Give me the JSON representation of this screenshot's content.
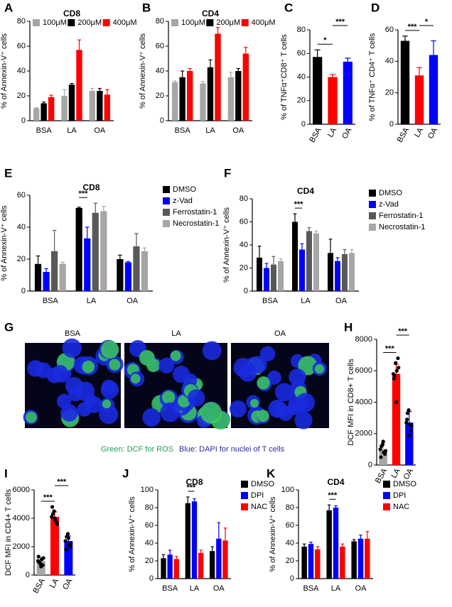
{
  "chart_data": [
    {
      "label": "A",
      "type": "bar",
      "title": "CD8",
      "ylabel": "% of Annexin-V⁺ cells",
      "categories": [
        "BSA",
        "LA",
        "OA"
      ],
      "ylim": [
        0,
        80
      ],
      "yticks": [
        0,
        20,
        40,
        60,
        80
      ],
      "legend": "top",
      "series": [
        {
          "name": "100μM",
          "color": "#a6a6a6",
          "values": [
            10,
            20,
            24
          ],
          "errors": [
            0.5,
            5,
            2
          ]
        },
        {
          "name": "200μM",
          "color": "#000000",
          "values": [
            14,
            29,
            24
          ],
          "errors": [
            1,
            1,
            2
          ]
        },
        {
          "name": "400μM",
          "color": "#ff0000",
          "values": [
            19,
            57,
            21
          ],
          "errors": [
            1.5,
            8,
            4
          ]
        }
      ]
    },
    {
      "label": "B",
      "type": "bar",
      "title": "CD4",
      "ylabel": "% of Annexin-V⁺ cells",
      "categories": [
        "BSA",
        "LA",
        "OA"
      ],
      "ylim": [
        0,
        80
      ],
      "yticks": [
        0,
        20,
        40,
        60,
        80
      ],
      "legend": "top",
      "series": [
        {
          "name": "100μM",
          "color": "#a6a6a6",
          "values": [
            31,
            30,
            35
          ],
          "errors": [
            1,
            1.5,
            4
          ]
        },
        {
          "name": "200μM",
          "color": "#000000",
          "values": [
            35,
            43,
            40
          ],
          "errors": [
            5,
            6,
            2
          ]
        },
        {
          "name": "400μM",
          "color": "#ff0000",
          "values": [
            40,
            70,
            54
          ],
          "errors": [
            2,
            5,
            5
          ]
        }
      ]
    },
    {
      "label": "C",
      "type": "bar",
      "ylabel": "% of TNFα⁺CD8⁺ T cells",
      "categories": [
        "BSA",
        "LA",
        "OA"
      ],
      "ylim": [
        0,
        80
      ],
      "yticks": [
        0,
        20,
        40,
        60,
        80
      ],
      "rotate_xticks": 60,
      "values": [
        57,
        40,
        53
      ],
      "errors": [
        6,
        2,
        3
      ],
      "colors": [
        "#000000",
        "#ff0000",
        "#0000ff"
      ],
      "annotations": [
        {
          "text": "*",
          "from": "BSA",
          "to": "LA"
        },
        {
          "text": "***",
          "from": "LA",
          "to": "OA"
        }
      ]
    },
    {
      "label": "D",
      "type": "bar",
      "ylabel": "% of TNFα⁺ CD4⁺ T cells",
      "categories": [
        "BSA",
        "LA",
        "OA"
      ],
      "ylim": [
        0,
        60
      ],
      "yticks": [
        0,
        20,
        40,
        60
      ],
      "rotate_xticks": 60,
      "values": [
        53,
        31,
        44
      ],
      "errors": [
        3,
        5,
        9
      ],
      "colors": [
        "#000000",
        "#ff0000",
        "#0000ff"
      ],
      "annotations": [
        {
          "text": "***",
          "from": "BSA",
          "to": "LA"
        },
        {
          "text": "*",
          "from": "LA",
          "to": "OA"
        }
      ]
    },
    {
      "label": "E",
      "type": "bar",
      "title": "CD8",
      "ylabel": "% of Annexin-V⁺ cells",
      "categories": [
        "BSA",
        "LA",
        "OA"
      ],
      "ylim": [
        0,
        60
      ],
      "yticks": [
        0,
        20,
        40,
        60
      ],
      "legend": "right",
      "series": [
        {
          "name": "DMSO",
          "color": "#000000",
          "values": [
            17,
            52,
            20
          ],
          "errors": [
            5,
            0.5,
            2.5
          ]
        },
        {
          "name": "z-Vad",
          "color": "#0000ff",
          "values": [
            12,
            33,
            18
          ],
          "errors": [
            2,
            7,
            0.5
          ]
        },
        {
          "name": "Ferrostatin-1",
          "color": "#595959",
          "values": [
            25,
            49,
            28
          ],
          "errors": [
            13,
            6,
            8
          ]
        },
        {
          "name": "Necrostatin-1",
          "color": "#a6a6a6",
          "values": [
            17,
            50,
            25
          ],
          "errors": [
            1,
            3,
            2
          ]
        }
      ],
      "annotations": [
        {
          "text": "***",
          "category": "LA"
        }
      ]
    },
    {
      "label": "F",
      "type": "bar",
      "title": "CD4",
      "ylabel": "% of Annexin-V⁺ cells",
      "categories": [
        "BSA",
        "LA",
        "OA"
      ],
      "ylim": [
        0,
        80
      ],
      "yticks": [
        0,
        20,
        40,
        60,
        80
      ],
      "legend": "right",
      "series": [
        {
          "name": "DMSO",
          "color": "#000000",
          "values": [
            29,
            60,
            33
          ],
          "errors": [
            10,
            7,
            12
          ]
        },
        {
          "name": "z-Vad",
          "color": "#0000ff",
          "values": [
            20,
            36,
            26
          ],
          "errors": [
            4,
            5,
            3
          ]
        },
        {
          "name": "Ferrostatin-1",
          "color": "#595959",
          "values": [
            23,
            52,
            32
          ],
          "errors": [
            7,
            3,
            4
          ]
        },
        {
          "name": "Necrostatin-1",
          "color": "#a6a6a6",
          "values": [
            26,
            50,
            33
          ],
          "errors": [
            2,
            2,
            3
          ]
        }
      ],
      "annotations": [
        {
          "text": "***",
          "category": "LA"
        }
      ]
    },
    {
      "label": "H",
      "type": "bar",
      "ylabel": "DCF  MFI in CD8+ T cells",
      "categories": [
        "BSA",
        "LA",
        "OA"
      ],
      "ylim": [
        0,
        8000
      ],
      "yticks": [
        0,
        2000,
        4000,
        6000,
        8000
      ],
      "rotate_xticks": 60,
      "values": [
        1000,
        5800,
        2700
      ],
      "errors": [
        400,
        600,
        700
      ],
      "colors": [
        "#a6a6a6",
        "#ff0000",
        "#0000ff"
      ],
      "points": [
        [
          1000,
          1300,
          700,
          500,
          1500,
          900,
          1200,
          800
        ],
        [
          5800,
          6500,
          6800,
          5500,
          4000,
          6200,
          5700,
          6000
        ],
        [
          2700,
          3500,
          2200,
          2900,
          1900,
          2500,
          3300,
          2600
        ]
      ],
      "annotations": [
        {
          "text": "***",
          "from": "BSA",
          "to": "LA"
        },
        {
          "text": "***",
          "from": "LA",
          "to": "OA"
        }
      ]
    },
    {
      "label": "I",
      "type": "bar",
      "ylabel": "DCF MFI in CD4+ T cells",
      "categories": [
        "BSA",
        "LA",
        "OA"
      ],
      "ylim": [
        0,
        6000
      ],
      "yticks": [
        0,
        2000,
        4000,
        6000
      ],
      "rotate_xticks": 60,
      "values": [
        1000,
        4100,
        2400
      ],
      "errors": [
        250,
        350,
        350
      ],
      "colors": [
        "#a6a6a6",
        "#ff0000",
        "#0000ff"
      ],
      "points": [
        [
          1000,
          800,
          700,
          1300,
          600,
          1200,
          900,
          1100
        ],
        [
          4100,
          4500,
          3700,
          4800,
          4000,
          3600,
          4300,
          3900
        ],
        [
          2400,
          2900,
          2000,
          1800,
          2600,
          2200,
          2700,
          2100
        ]
      ],
      "annotations": [
        {
          "text": "***",
          "from": "BSA",
          "to": "LA"
        },
        {
          "text": "***",
          "from": "LA",
          "to": "OA"
        }
      ]
    },
    {
      "label": "J",
      "type": "bar",
      "title": "CD8",
      "ylabel": "% of Annexin-V⁺ cells",
      "categories": [
        "BSA",
        "LA",
        "OA"
      ],
      "ylim": [
        0,
        100
      ],
      "yticks": [
        0,
        20,
        40,
        60,
        80,
        100
      ],
      "legend": "right",
      "series": [
        {
          "name": "DMSO",
          "color": "#000000",
          "values": [
            23,
            85,
            31
          ],
          "errors": [
            4,
            7,
            5
          ]
        },
        {
          "name": "DPI",
          "color": "#0000ff",
          "values": [
            27,
            87,
            45
          ],
          "errors": [
            5,
            3,
            18
          ]
        },
        {
          "name": "NAC",
          "color": "#ff0000",
          "values": [
            22,
            29,
            43
          ],
          "errors": [
            3,
            3,
            14
          ]
        }
      ],
      "annotations": [
        {
          "text": "***",
          "category": "LA"
        }
      ]
    },
    {
      "label": "K",
      "type": "bar",
      "title": "CD4",
      "ylabel": "% of Annexin-V⁺ cells",
      "categories": [
        "BSA",
        "LA",
        "OA"
      ],
      "ylim": [
        0,
        100
      ],
      "yticks": [
        0,
        20,
        40,
        60,
        80,
        100
      ],
      "legend": "right",
      "series": [
        {
          "name": "DMSO",
          "color": "#000000",
          "values": [
            36,
            77,
            42
          ],
          "errors": [
            3,
            6,
            2
          ]
        },
        {
          "name": "DPI",
          "color": "#0000ff",
          "values": [
            39,
            80,
            45
          ],
          "errors": [
            2,
            2,
            4
          ]
        },
        {
          "name": "NAC",
          "color": "#ff0000",
          "values": [
            33,
            36,
            45
          ],
          "errors": [
            3,
            3,
            8
          ]
        }
      ],
      "annotations": [
        {
          "text": "***",
          "category": "LA"
        }
      ]
    }
  ],
  "image_panel": {
    "label": "G",
    "titles": [
      "BSA",
      "LA",
      "OA"
    ],
    "caption": [
      "Green: DCF for ROS",
      "Blue: DAPI for nuclei of T cells"
    ]
  }
}
